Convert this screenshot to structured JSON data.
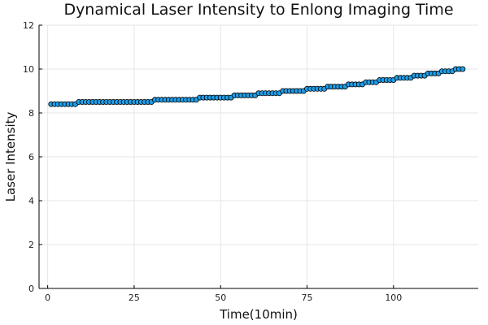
{
  "chart_data": {
    "type": "scatter",
    "title": "Dynamical Laser Intensity to Enlong Imaging Time",
    "xlabel": "Time(10min)",
    "ylabel": "Laser Intensity",
    "xlim": [
      -2.5,
      124.5
    ],
    "ylim": [
      0,
      12
    ],
    "xticks": [
      0,
      25,
      50,
      75,
      100
    ],
    "yticks": [
      0,
      2,
      4,
      6,
      8,
      10,
      12
    ],
    "grid": true,
    "legend": "none",
    "marker_color": "#1f9ee8",
    "x": [
      1,
      2,
      3,
      4,
      5,
      6,
      7,
      8,
      9,
      10,
      11,
      12,
      13,
      14,
      15,
      16,
      17,
      18,
      19,
      20,
      21,
      22,
      23,
      24,
      25,
      26,
      27,
      28,
      29,
      30,
      31,
      32,
      33,
      34,
      35,
      36,
      37,
      38,
      39,
      40,
      41,
      42,
      43,
      44,
      45,
      46,
      47,
      48,
      49,
      50,
      51,
      52,
      53,
      54,
      55,
      56,
      57,
      58,
      59,
      60,
      61,
      62,
      63,
      64,
      65,
      66,
      67,
      68,
      69,
      70,
      71,
      72,
      73,
      74,
      75,
      76,
      77,
      78,
      79,
      80,
      81,
      82,
      83,
      84,
      85,
      86,
      87,
      88,
      89,
      90,
      91,
      92,
      93,
      94,
      95,
      96,
      97,
      98,
      99,
      100,
      101,
      102,
      103,
      104,
      105,
      106,
      107,
      108,
      109,
      110,
      111,
      112,
      113,
      114,
      115,
      116,
      117,
      118,
      119,
      120
    ],
    "y": [
      8.4,
      8.4,
      8.4,
      8.4,
      8.4,
      8.4,
      8.4,
      8.4,
      8.5,
      8.5,
      8.5,
      8.5,
      8.5,
      8.5,
      8.5,
      8.5,
      8.5,
      8.5,
      8.5,
      8.5,
      8.5,
      8.5,
      8.5,
      8.5,
      8.5,
      8.5,
      8.5,
      8.5,
      8.5,
      8.5,
      8.6,
      8.6,
      8.6,
      8.6,
      8.6,
      8.6,
      8.6,
      8.6,
      8.6,
      8.6,
      8.6,
      8.6,
      8.6,
      8.7,
      8.7,
      8.7,
      8.7,
      8.7,
      8.7,
      8.7,
      8.7,
      8.7,
      8.7,
      8.8,
      8.8,
      8.8,
      8.8,
      8.8,
      8.8,
      8.8,
      8.9,
      8.9,
      8.9,
      8.9,
      8.9,
      8.9,
      8.9,
      9.0,
      9.0,
      9.0,
      9.0,
      9.0,
      9.0,
      9.0,
      9.1,
      9.1,
      9.1,
      9.1,
      9.1,
      9.1,
      9.2,
      9.2,
      9.2,
      9.2,
      9.2,
      9.2,
      9.3,
      9.3,
      9.3,
      9.3,
      9.3,
      9.4,
      9.4,
      9.4,
      9.4,
      9.5,
      9.5,
      9.5,
      9.5,
      9.5,
      9.6,
      9.6,
      9.6,
      9.6,
      9.6,
      9.7,
      9.7,
      9.7,
      9.7,
      9.8,
      9.8,
      9.8,
      9.8,
      9.9,
      9.9,
      9.9,
      9.9,
      10.0,
      10.0,
      10.0
    ]
  }
}
